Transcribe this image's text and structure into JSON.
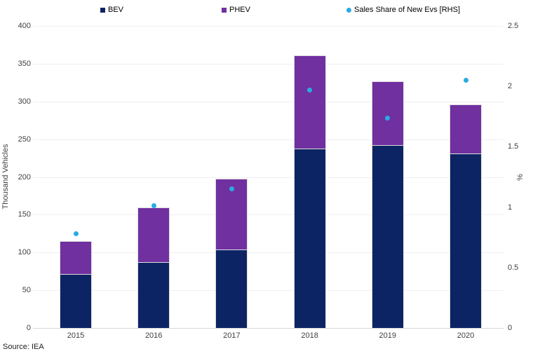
{
  "source": "Source: IEA",
  "colors": {
    "bev": "#0d2464",
    "phev": "#7030a0",
    "dot": "#29abe2",
    "gridline": "#efefef",
    "axis_line": "#d9d9d9",
    "tick_text": "#404040"
  },
  "chart_data": {
    "type": "bar",
    "subtype": "stacked-with-scatter-overlay",
    "title": "",
    "categories": [
      "2015",
      "2016",
      "2017",
      "2018",
      "2019",
      "2020"
    ],
    "series": [
      {
        "name": "BEV",
        "type": "bar",
        "axis": "left",
        "color": "#0d2464",
        "values": [
          71,
          87,
          104,
          238,
          242,
          231
        ]
      },
      {
        "name": "PHEV",
        "type": "bar",
        "axis": "left",
        "color": "#7030a0",
        "values": [
          44,
          73,
          94,
          123,
          85,
          65
        ]
      },
      {
        "name": "Sales Share of New Evs [RHS]",
        "type": "scatter",
        "axis": "right",
        "color": "#29abe2",
        "values": [
          0.78,
          1.01,
          1.15,
          1.97,
          1.74,
          2.05
        ]
      }
    ],
    "stacked_totals": [
      115,
      160,
      198,
      361,
      327,
      296
    ],
    "xlabel": "",
    "ylabel_left": "Thousand Vehicles",
    "ylabel_right": "%",
    "yticks_left": [
      "0",
      "50",
      "100",
      "150",
      "200",
      "250",
      "300",
      "350",
      "400"
    ],
    "yticks_right": [
      "0",
      "0.5",
      "1",
      "1.5",
      "2",
      "2.5"
    ],
    "ylim_left": [
      0,
      400
    ],
    "ylim_right": [
      0,
      2.5
    ],
    "grid": true,
    "legend_position": "top"
  }
}
